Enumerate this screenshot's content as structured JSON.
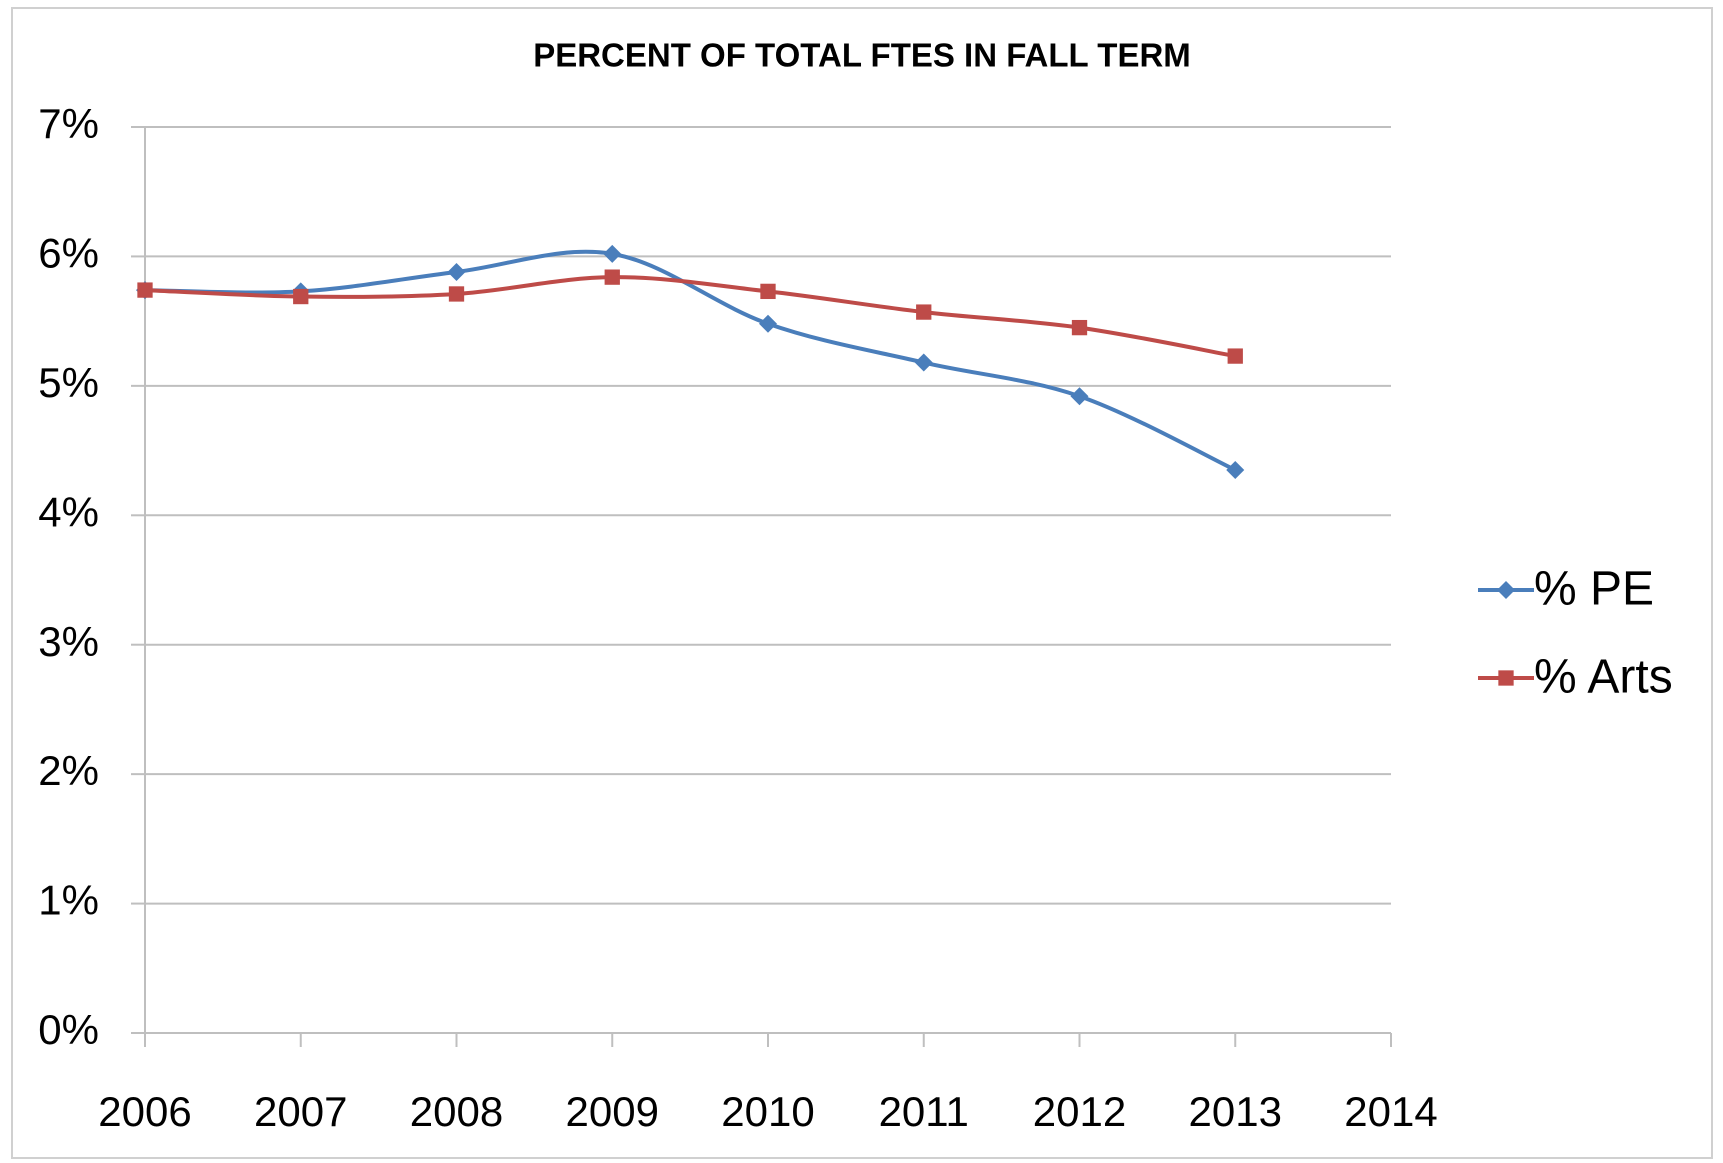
{
  "chart_data": {
    "type": "line",
    "title": "PERCENT OF TOTAL FTES IN FALL TERM",
    "x": [
      2006,
      2007,
      2008,
      2009,
      2010,
      2011,
      2012,
      2013
    ],
    "series": [
      {
        "name": "% PE",
        "color": "#4a7ebb",
        "marker": "diamond",
        "values": [
          5.74,
          5.73,
          5.88,
          6.02,
          5.48,
          5.18,
          4.92,
          4.35
        ]
      },
      {
        "name": "% Arts",
        "color": "#be4b48",
        "marker": "square",
        "values": [
          5.74,
          5.69,
          5.71,
          5.84,
          5.73,
          5.57,
          5.45,
          5.23
        ]
      }
    ],
    "xlim": [
      2006,
      2014
    ],
    "xticks": [
      2006,
      2007,
      2008,
      2009,
      2010,
      2011,
      2012,
      2013,
      2014
    ],
    "ylim": [
      0,
      7
    ],
    "yticks": [
      {
        "value": 0,
        "label": "0%"
      },
      {
        "value": 1,
        "label": "1%"
      },
      {
        "value": 2,
        "label": "2%"
      },
      {
        "value": 3,
        "label": "3%"
      },
      {
        "value": 4,
        "label": "4%"
      },
      {
        "value": 5,
        "label": "5%"
      },
      {
        "value": 6,
        "label": "6%"
      },
      {
        "value": 7,
        "label": "7%"
      }
    ],
    "grid": true,
    "smooth": true,
    "legend": "right"
  }
}
